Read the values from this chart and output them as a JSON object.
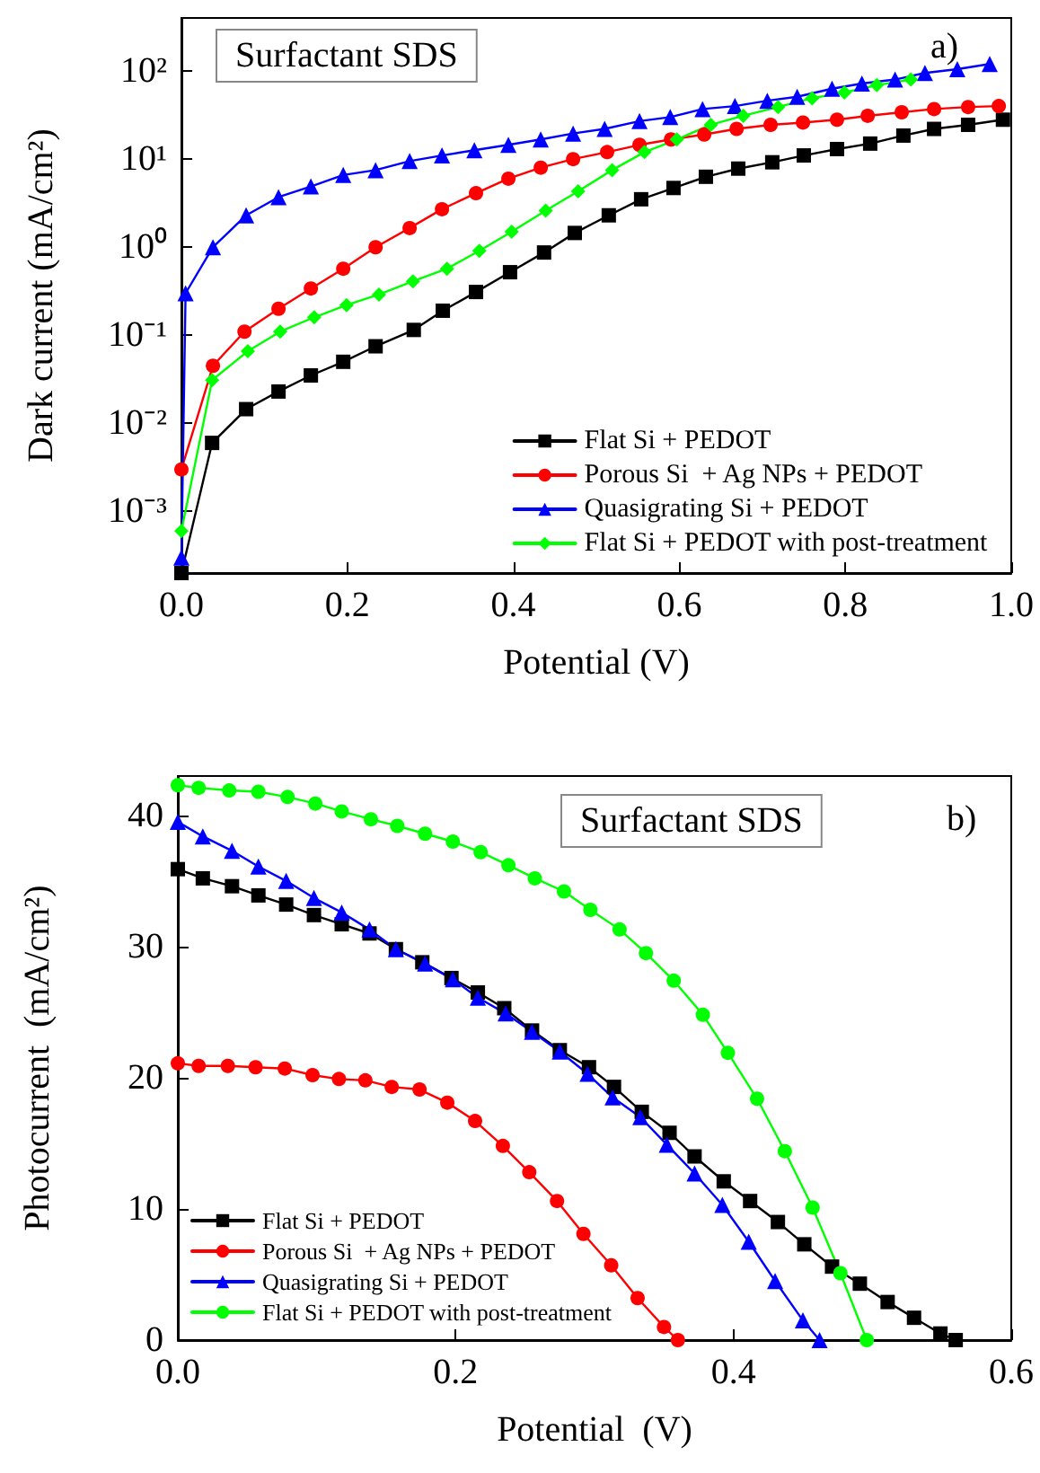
{
  "chart_data": [
    {
      "type": "line",
      "xlabel": "Potential (V)",
      "ylabel": "Dark current (mA/cm²)",
      "log": "y",
      "legend": "bottom right",
      "annotations": [
        "Surfactant SDS",
        "a)"
      ],
      "xlim": [
        0,
        1
      ],
      "xticks": [
        {
          "value": 0,
          "label": "0.0"
        },
        {
          "value": 0.2,
          "label": "0.2"
        },
        {
          "value": 0.4,
          "label": "0.4"
        },
        {
          "value": 0.6,
          "label": "0.6"
        },
        {
          "value": 0.8,
          "label": "0.8"
        },
        {
          "value": 1,
          "label": "1.0"
        }
      ],
      "ylim": [
        0.0002,
        400
      ],
      "yticks": [
        {
          "value": 0.001,
          "label": "10⁻³"
        },
        {
          "value": 0.01,
          "label": "10⁻²"
        },
        {
          "value": 0.1,
          "label": "10⁻¹"
        },
        {
          "value": 1,
          "label": "10⁰"
        },
        {
          "value": 10,
          "label": "10¹"
        },
        {
          "value": 100,
          "label": "10²"
        }
      ],
      "series": [
        {
          "name": "Flat Si + PEDOT",
          "color": "#000000",
          "marker": "square",
          "x": [
            0,
            0.037,
            0.078,
            0.117,
            0.156,
            0.195,
            0.234,
            0.28,
            0.315,
            0.355,
            0.396,
            0.437,
            0.474,
            0.515,
            0.554,
            0.593,
            0.632,
            0.671,
            0.712,
            0.75,
            0.79,
            0.83,
            0.87,
            0.907,
            0.948,
            0.99
          ],
          "values": [
            0.0002,
            0.006,
            0.0145,
            0.023,
            0.035,
            0.05,
            0.075,
            0.115,
            0.19,
            0.31,
            0.52,
            0.87,
            1.45,
            2.3,
            3.5,
            4.7,
            6.3,
            7.8,
            9.2,
            11,
            13,
            15,
            18.5,
            22,
            24.5,
            28
          ]
        },
        {
          "name": "Porous Si  + Ag NPs + PEDOT",
          "color": "#ff0000",
          "marker": "circle",
          "x": [
            0,
            0.038,
            0.076,
            0.117,
            0.156,
            0.195,
            0.234,
            0.275,
            0.314,
            0.355,
            0.394,
            0.433,
            0.472,
            0.513,
            0.552,
            0.59,
            0.63,
            0.669,
            0.71,
            0.749,
            0.79,
            0.827,
            0.868,
            0.907,
            0.948,
            0.985
          ],
          "values": [
            0.003,
            0.045,
            0.11,
            0.2,
            0.34,
            0.57,
            1.0,
            1.65,
            2.7,
            4.1,
            6,
            8,
            10,
            12,
            14.5,
            16.7,
            19,
            22,
            24.5,
            26,
            28,
            31,
            34,
            37,
            39,
            40
          ]
        },
        {
          "name": "Quasigrating Si + PEDOT",
          "color": "#0000ff",
          "marker": "triangle",
          "x": [
            0,
            0.005,
            0.038,
            0.078,
            0.117,
            0.156,
            0.195,
            0.234,
            0.275,
            0.314,
            0.353,
            0.394,
            0.433,
            0.472,
            0.51,
            0.552,
            0.589,
            0.628,
            0.667,
            0.706,
            0.742,
            0.784,
            0.82,
            0.86,
            0.896,
            0.935,
            0.974
          ],
          "values": [
            0.0003,
            0.3,
            1.0,
            2.3,
            3.7,
            4.9,
            6.6,
            7.5,
            9.5,
            11,
            12.6,
            14.5,
            16.7,
            19.5,
            22,
            27,
            30,
            37,
            40,
            46,
            51,
            63,
            72,
            80,
            95,
            105,
            120
          ]
        },
        {
          "name": "Flat Si + PEDOT with post-treatment",
          "color": "#00ff00",
          "marker": "diamond",
          "x": [
            0,
            0.037,
            0.08,
            0.119,
            0.16,
            0.199,
            0.238,
            0.279,
            0.32,
            0.359,
            0.398,
            0.439,
            0.478,
            0.519,
            0.558,
            0.597,
            0.638,
            0.677,
            0.719,
            0.76,
            0.799,
            0.838,
            0.879
          ],
          "values": [
            0.0006,
            0.031,
            0.066,
            0.11,
            0.16,
            0.22,
            0.29,
            0.41,
            0.57,
            0.91,
            1.5,
            2.6,
            4.3,
            7.5,
            12,
            16.7,
            24.5,
            31,
            39,
            49,
            57,
            69,
            80
          ]
        }
      ]
    },
    {
      "type": "line",
      "xlabel": "Potential  (V)",
      "ylabel": "Photocurrent  (mA/cm²)",
      "legend": "bottom left",
      "annotations": [
        "Surfactant SDS",
        "b)"
      ],
      "xlim": [
        0,
        0.6
      ],
      "xticks": [
        {
          "value": 0,
          "label": "0.0"
        },
        {
          "value": 0.2,
          "label": "0.2"
        },
        {
          "value": 0.4,
          "label": "0.4"
        },
        {
          "value": 0.6,
          "label": "0.6"
        }
      ],
      "ylim": [
        0,
        43
      ],
      "yticks": [
        0,
        10,
        20,
        30,
        40
      ],
      "series": [
        {
          "name": "Flat Si + PEDOT",
          "color": "#000000",
          "marker": "square",
          "x": [
            0,
            0.018,
            0.039,
            0.058,
            0.078,
            0.098,
            0.118,
            0.138,
            0.157,
            0.176,
            0.197,
            0.216,
            0.235,
            0.255,
            0.275,
            0.296,
            0.314,
            0.334,
            0.354,
            0.372,
            0.393,
            0.412,
            0.432,
            0.451,
            0.471,
            0.491,
            0.511,
            0.53,
            0.549,
            0.56
          ],
          "values": [
            35.9,
            35.2,
            34.6,
            33.9,
            33.2,
            32.4,
            31.7,
            31.0,
            29.8,
            28.8,
            27.6,
            26.5,
            25.3,
            23.6,
            22.1,
            20.8,
            19.3,
            17.4,
            15.8,
            14.0,
            12.1,
            10.6,
            9.0,
            7.3,
            5.6,
            4.3,
            2.9,
            1.7,
            0.5,
            0
          ]
        },
        {
          "name": "Porous Si  + Ag NPs + PEDOT",
          "color": "#ff0000",
          "marker": "circle",
          "x": [
            0,
            0.015,
            0.036,
            0.056,
            0.077,
            0.097,
            0.116,
            0.135,
            0.154,
            0.174,
            0.194,
            0.214,
            0.234,
            0.253,
            0.273,
            0.292,
            0.312,
            0.331,
            0.35,
            0.36
          ],
          "values": [
            21.1,
            20.9,
            20.9,
            20.8,
            20.7,
            20.2,
            19.9,
            19.8,
            19.3,
            19.1,
            18.1,
            16.7,
            14.8,
            12.8,
            10.6,
            8.1,
            5.7,
            3.2,
            1.0,
            0
          ]
        },
        {
          "name": "Quasigrating Si + PEDOT",
          "color": "#0000ff",
          "marker": "triangle",
          "x": [
            0,
            0.018,
            0.039,
            0.058,
            0.078,
            0.098,
            0.118,
            0.138,
            0.157,
            0.178,
            0.198,
            0.216,
            0.236,
            0.255,
            0.275,
            0.295,
            0.313,
            0.333,
            0.352,
            0.372,
            0.392,
            0.411,
            0.43,
            0.45,
            0.462
          ],
          "values": [
            39.5,
            38.4,
            37.3,
            36.1,
            35.0,
            33.7,
            32.6,
            31.3,
            29.8,
            28.7,
            27.5,
            26.1,
            24.9,
            23.5,
            22.0,
            20.3,
            18.5,
            17.0,
            14.9,
            12.7,
            10.3,
            7.5,
            4.5,
            1.5,
            0
          ]
        },
        {
          "name": "Flat Si + PEDOT with post-treatment",
          "color": "#00ff00",
          "marker": "circle",
          "x": [
            0,
            0.015,
            0.037,
            0.058,
            0.079,
            0.099,
            0.118,
            0.139,
            0.158,
            0.178,
            0.198,
            0.218,
            0.238,
            0.257,
            0.278,
            0.297,
            0.318,
            0.337,
            0.357,
            0.378,
            0.396,
            0.417,
            0.437,
            0.457,
            0.477,
            0.496
          ],
          "values": [
            42.3,
            42.1,
            41.9,
            41.8,
            41.4,
            40.9,
            40.3,
            39.7,
            39.2,
            38.6,
            38.0,
            37.2,
            36.2,
            35.2,
            34.2,
            32.8,
            31.3,
            29.5,
            27.4,
            24.8,
            21.9,
            18.4,
            14.4,
            10.1,
            5.1,
            0
          ]
        }
      ]
    }
  ]
}
